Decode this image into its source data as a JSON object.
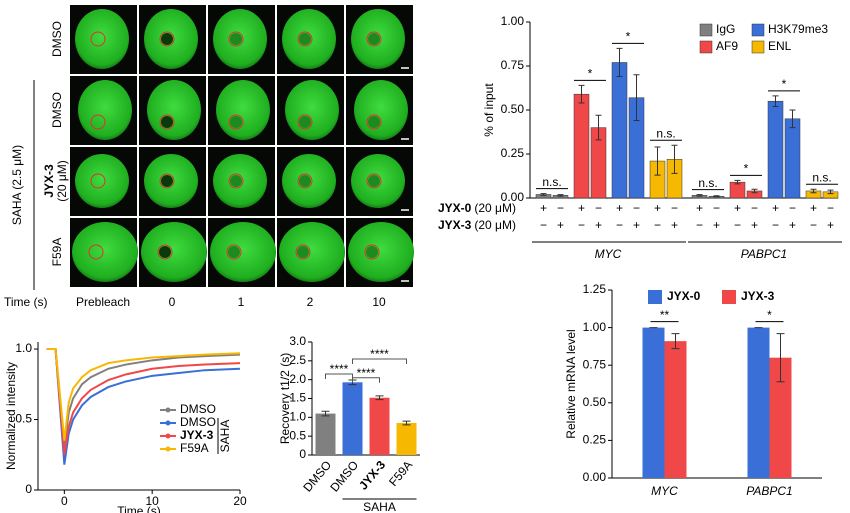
{
  "microscopy": {
    "group_label": "SAHA (2.5 μM)",
    "rows": [
      {
        "label": "DMSO"
      },
      {
        "label": "DMSO"
      },
      {
        "label": "JYX-3",
        "sub": "(20 μM)"
      },
      {
        "label": "F59A"
      }
    ],
    "time_label": "Time (s)",
    "time_points": [
      "Prebleach",
      "0",
      "1",
      "2",
      "10"
    ]
  },
  "chart_data": [
    {
      "type": "line",
      "xlabel": "Time (s)",
      "ylabel": "Normalized intensity",
      "x": [
        -2,
        -1,
        0,
        0.5,
        1,
        2,
        3,
        5,
        7,
        10,
        13,
        16,
        20
      ],
      "xlim": [
        -3,
        20
      ],
      "xticks": [
        0,
        10,
        20
      ],
      "ylim": [
        0,
        1.05
      ],
      "yticks": [
        0,
        0.5,
        {
          "value": 1,
          "label": "1.0"
        }
      ],
      "legend_group": "SAHA",
      "series": [
        {
          "name": "DMSO",
          "color": "#808080",
          "values": [
            1,
            1,
            0.3,
            0.55,
            0.65,
            0.75,
            0.8,
            0.86,
            0.89,
            0.92,
            0.94,
            0.95,
            0.96
          ]
        },
        {
          "name": "DMSO",
          "color": "#3a6fd8",
          "values": [
            1,
            1,
            0.18,
            0.4,
            0.5,
            0.6,
            0.66,
            0.73,
            0.77,
            0.81,
            0.83,
            0.85,
            0.86
          ]
        },
        {
          "name": "JYX-3",
          "color": "#f04848",
          "values": [
            1,
            1,
            0.25,
            0.45,
            0.55,
            0.65,
            0.71,
            0.78,
            0.82,
            0.86,
            0.88,
            0.89,
            0.9
          ]
        },
        {
          "name": "F59A",
          "color": "#f6b800",
          "values": [
            1,
            1,
            0.35,
            0.62,
            0.72,
            0.8,
            0.85,
            0.9,
            0.92,
            0.94,
            0.95,
            0.96,
            0.97
          ]
        }
      ]
    },
    {
      "type": "bar",
      "ylabel": "Recovery t1/2 (s)",
      "group_label": "SAHA",
      "categories": [
        "DMSO",
        "DMSO",
        "JYX-3",
        "F59A"
      ],
      "values": [
        1.1,
        1.93,
        1.52,
        0.85
      ],
      "errors": [
        0.06,
        0.06,
        0.05,
        0.05
      ],
      "colors": [
        "#808080",
        "#3a6fd8",
        "#f04848",
        "#f6b800"
      ],
      "ylim": [
        0,
        3
      ],
      "yticks": [
        0,
        0.5,
        {
          "value": 1,
          "label": "1.0"
        },
        1.5,
        {
          "value": 2,
          "label": "2.0"
        },
        2.5,
        {
          "value": 3,
          "label": "3.0"
        }
      ],
      "significance": [
        "****",
        "****",
        "****"
      ]
    },
    {
      "type": "grouped_bar",
      "ylabel": "% of input",
      "groups": [
        "MYC",
        "PABPC1"
      ],
      "treatments": [
        {
          "name": "JYX-0",
          "dose": "(20 μM)",
          "marks": [
            "+",
            "−",
            "+",
            "−"
          ]
        },
        {
          "name": "JYX-3",
          "dose": "(20 μM)",
          "marks": [
            "−",
            "+",
            "−",
            "+"
          ]
        }
      ],
      "ylim": [
        0,
        1
      ],
      "yticks": [
        {
          "value": 0,
          "label": "0.00"
        },
        0.25,
        {
          "value": 0.5,
          "label": "0.50"
        },
        0.75,
        {
          "value": 1,
          "label": "1.00"
        }
      ],
      "series": [
        {
          "name": "IgG",
          "color": "#808080",
          "values": [
            0.02,
            0.015,
            0.015,
            0.01
          ],
          "errors": [
            0.005,
            0.004,
            0.004,
            0.003
          ],
          "significance": [
            "n.s.",
            "n.s."
          ]
        },
        {
          "name": "AF9",
          "color": "#f04848",
          "values": [
            0.59,
            0.4,
            0.09,
            0.04
          ],
          "errors": [
            0.05,
            0.07,
            0.01,
            0.01
          ],
          "significance": [
            "*",
            "*"
          ]
        },
        {
          "name": "H3K79me3",
          "color": "#3a6fd8",
          "values": [
            0.77,
            0.57,
            0.55,
            0.45
          ],
          "errors": [
            0.08,
            0.13,
            0.03,
            0.05
          ],
          "significance": [
            "*",
            "*"
          ]
        },
        {
          "name": "ENL",
          "color": "#f6b800",
          "values": [
            0.21,
            0.22,
            0.04,
            0.035
          ],
          "errors": [
            0.08,
            0.08,
            0.01,
            0.01
          ],
          "significance": [
            "n.s.",
            "n.s."
          ]
        }
      ]
    },
    {
      "type": "grouped_bar2",
      "ylabel": "Relative mRNA level",
      "categories": [
        "MYC",
        "PABPC1"
      ],
      "ylim": [
        0,
        1.25
      ],
      "yticks": [
        {
          "value": 0,
          "label": "0.00"
        },
        0.25,
        {
          "value": 0.5,
          "label": "0.50"
        },
        0.75,
        {
          "value": 1,
          "label": "1.00"
        },
        1.25
      ],
      "significance": [
        "**",
        "*"
      ],
      "series": [
        {
          "name": "JYX-0",
          "color": "#3a6fd8",
          "values": [
            1,
            1
          ],
          "errors": [
            0,
            0
          ]
        },
        {
          "name": "JYX-3",
          "color": "#f04848",
          "values": [
            0.91,
            0.8
          ],
          "errors": [
            0.05,
            0.16
          ]
        }
      ]
    }
  ]
}
